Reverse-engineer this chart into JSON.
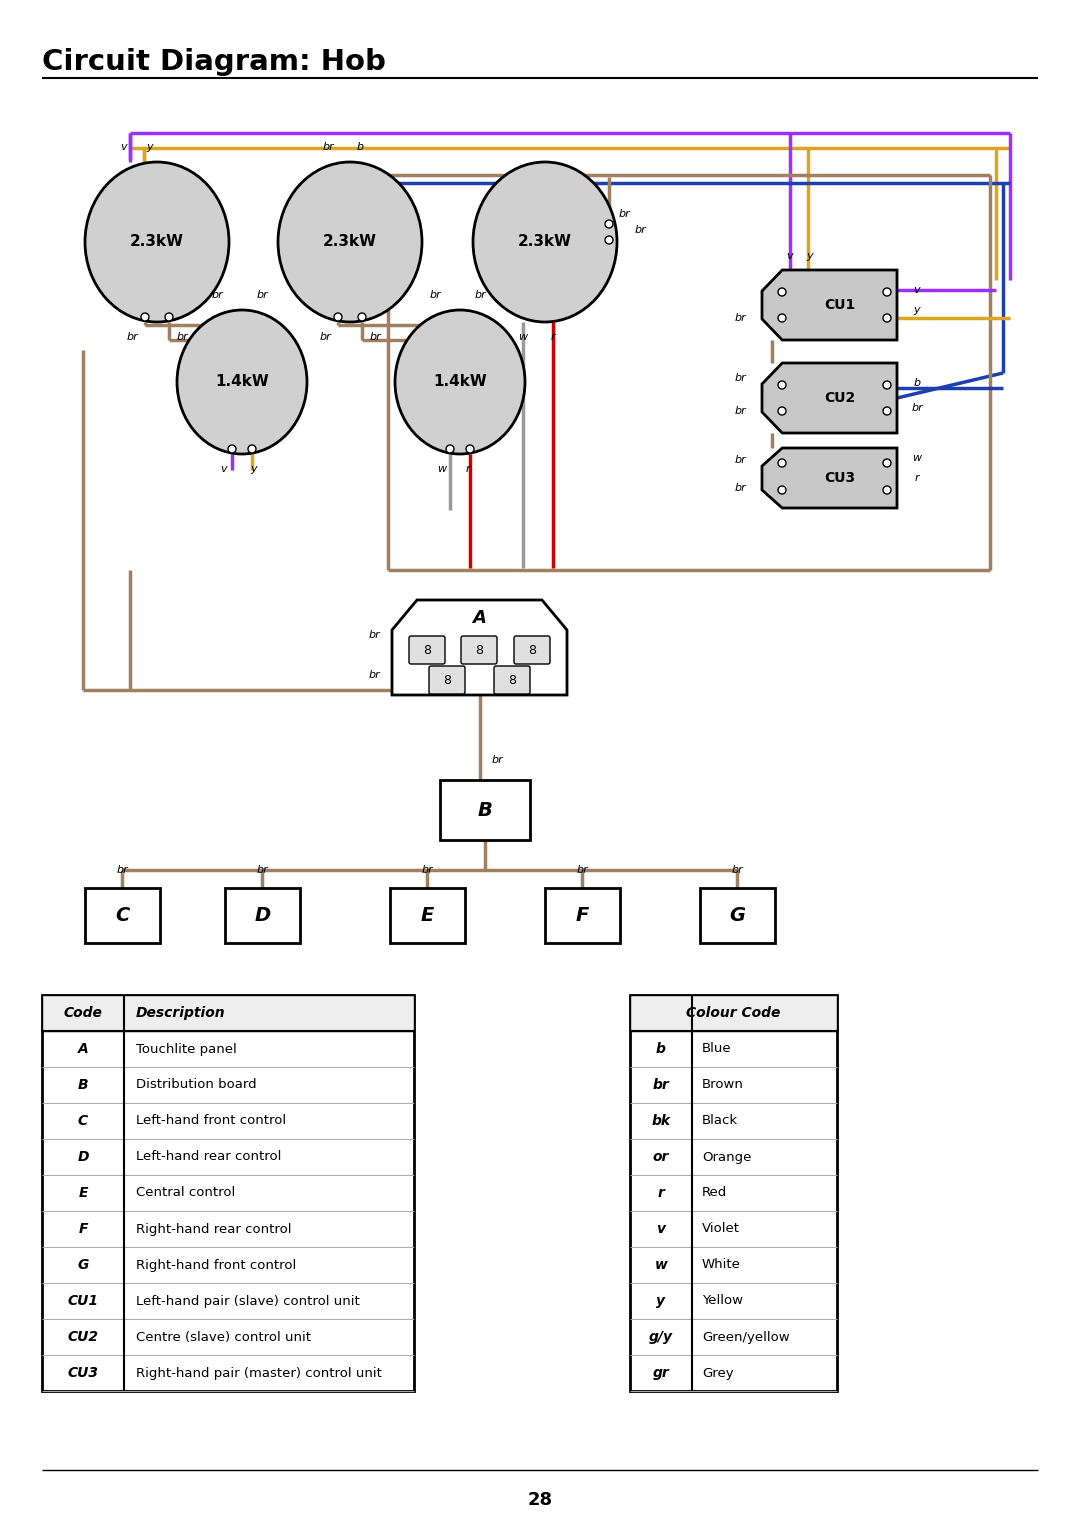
{
  "title": "Circuit Diagram: Hob",
  "page_number": "28",
  "background_color": "#ffffff",
  "colors": {
    "violet": "#9B30FF",
    "yellow": "#DAA520",
    "blue": "#1E40AF",
    "brown": "#A08060",
    "red": "#CC0000",
    "white_wire": "#999999",
    "circle_fill": "#d0d0d0",
    "cu_fill": "#c8c8c8"
  },
  "left_table": {
    "headers": [
      "Code",
      "Description"
    ],
    "rows": [
      [
        "A",
        "Touchlite panel"
      ],
      [
        "B",
        "Distribution board"
      ],
      [
        "C",
        "Left-hand front control"
      ],
      [
        "D",
        "Left-hand rear control"
      ],
      [
        "E",
        "Central control"
      ],
      [
        "F",
        "Right-hand rear control"
      ],
      [
        "G",
        "Right-hand front control"
      ],
      [
        "CU1",
        "Left-hand pair (slave) control unit"
      ],
      [
        "CU2",
        "Centre (slave) control unit"
      ],
      [
        "CU3",
        "Right-hand pair (master) control unit"
      ]
    ]
  },
  "right_table": {
    "header": "Colour Code",
    "rows": [
      [
        "b",
        "Blue"
      ],
      [
        "br",
        "Brown"
      ],
      [
        "bk",
        "Black"
      ],
      [
        "or",
        "Orange"
      ],
      [
        "r",
        "Red"
      ],
      [
        "v",
        "Violet"
      ],
      [
        "w",
        "White"
      ],
      [
        "y",
        "Yellow"
      ],
      [
        "g/y",
        "Green/yellow"
      ],
      [
        "gr",
        "Grey"
      ]
    ]
  }
}
